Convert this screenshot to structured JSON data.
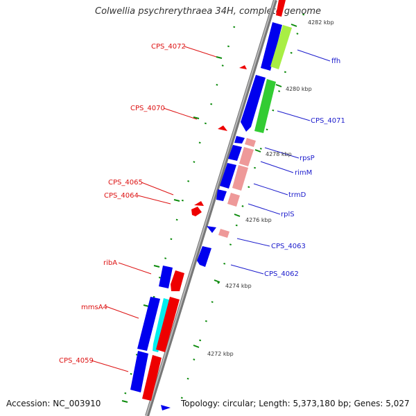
{
  "title": "Colwellia psychrerythraea 34H, complete genome",
  "accession": "Accession: NC_003910",
  "topology": "Topology: circular; Length: 5,373,180 bp; Genes: 5,027",
  "colors": {
    "cds": "#0000ee",
    "rna_dark": "#ee0000",
    "label_left": "#dd1111",
    "label_right": "#1a1acc",
    "ticks": "#0a8a0a",
    "backbone": "#888888"
  },
  "kbp_marks": [
    "4282 kbp",
    "4280 kbp",
    "4278 kbp",
    "4276 kbp",
    "4274 kbp",
    "4272 kbp"
  ],
  "left_labels": [
    "CPS_4072",
    "CPS_4070",
    "CPS_4065",
    "CPS_4064",
    "ribA",
    "mmsA4",
    "CPS_4059"
  ],
  "right_labels": [
    "ffh",
    "CPS_4071",
    "rpsP",
    "rimM",
    "trmD",
    "rplS",
    "CPS_4063",
    "CPS_4062"
  ]
}
